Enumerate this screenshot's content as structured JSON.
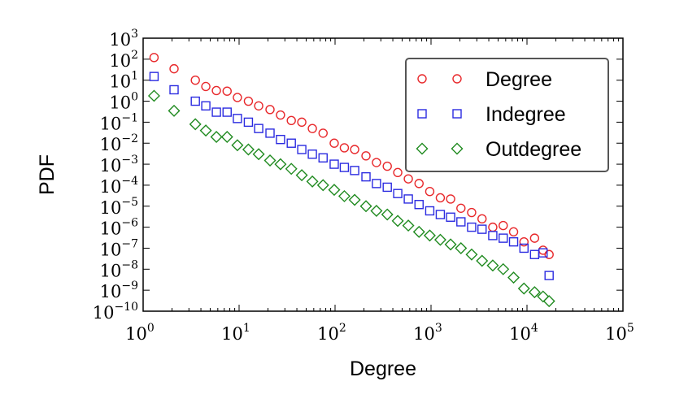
{
  "chart_data": {
    "type": "scatter",
    "title": "",
    "xlabel": "Degree",
    "ylabel": "PDF",
    "x_scale": "log",
    "y_scale": "log",
    "xlim": [
      1,
      100000
    ],
    "ylim": [
      1e-10,
      1000
    ],
    "x_ticks": [
      {
        "base": "10",
        "exp": "0"
      },
      {
        "base": "10",
        "exp": "1"
      },
      {
        "base": "10",
        "exp": "2"
      },
      {
        "base": "10",
        "exp": "3"
      },
      {
        "base": "10",
        "exp": "4"
      },
      {
        "base": "10",
        "exp": "5"
      }
    ],
    "y_ticks": [
      {
        "base": "10",
        "exp": "3"
      },
      {
        "base": "10",
        "exp": "2"
      },
      {
        "base": "10",
        "exp": "1"
      },
      {
        "base": "10",
        "exp": "0"
      },
      {
        "base": "10",
        "exp": "−1"
      },
      {
        "base": "10",
        "exp": "−2"
      },
      {
        "base": "10",
        "exp": "−3"
      },
      {
        "base": "10",
        "exp": "−4"
      },
      {
        "base": "10",
        "exp": "−5"
      },
      {
        "base": "10",
        "exp": "−6"
      },
      {
        "base": "10",
        "exp": "−7"
      },
      {
        "base": "10",
        "exp": "−8"
      },
      {
        "base": "10",
        "exp": "−9"
      },
      {
        "base": "10",
        "exp": "−10"
      }
    ],
    "legend_position": "top-right",
    "series": [
      {
        "name": "Degree",
        "marker": "circle",
        "color": "#e8282b",
        "points": [
          [
            1.3,
            120
          ],
          [
            2.1,
            35
          ],
          [
            3.5,
            10
          ],
          [
            4.5,
            5
          ],
          [
            5.8,
            3.2
          ],
          [
            7.5,
            3
          ],
          [
            9.6,
            1.5
          ],
          [
            12.5,
            1.0
          ],
          [
            16,
            0.6
          ],
          [
            21,
            0.4
          ],
          [
            27,
            0.22
          ],
          [
            35,
            0.12
          ],
          [
            45,
            0.1
          ],
          [
            58,
            0.05
          ],
          [
            75,
            0.03
          ],
          [
            98,
            0.01
          ],
          [
            125,
            0.006
          ],
          [
            160,
            0.005
          ],
          [
            210,
            0.0025
          ],
          [
            270,
            0.0012
          ],
          [
            350,
            0.0008
          ],
          [
            450,
            0.0004
          ],
          [
            580,
            0.0002
          ],
          [
            750,
            0.00012
          ],
          [
            970,
            5e-05
          ],
          [
            1250,
            2.5e-05
          ],
          [
            1600,
            2.2e-05
          ],
          [
            2050,
            8e-06
          ],
          [
            2650,
            5e-06
          ],
          [
            3400,
            2.5e-06
          ],
          [
            4400,
            1e-06
          ],
          [
            5650,
            1.2e-06
          ],
          [
            7250,
            6e-07
          ],
          [
            9300,
            2e-07
          ],
          [
            12000,
            3e-07
          ],
          [
            14700,
            8e-08
          ],
          [
            17000,
            5e-08
          ]
        ]
      },
      {
        "name": "Indegree",
        "marker": "square",
        "color": "#2b2be0",
        "points": [
          [
            1.3,
            15
          ],
          [
            2.1,
            3.5
          ],
          [
            3.5,
            1.0
          ],
          [
            4.5,
            0.6
          ],
          [
            5.8,
            0.3
          ],
          [
            7.5,
            0.3
          ],
          [
            9.6,
            0.15
          ],
          [
            12.5,
            0.1
          ],
          [
            16,
            0.05
          ],
          [
            21,
            0.03
          ],
          [
            27,
            0.015
          ],
          [
            35,
            0.01
          ],
          [
            45,
            0.005
          ],
          [
            58,
            0.003
          ],
          [
            75,
            0.002
          ],
          [
            98,
            0.001
          ],
          [
            125,
            0.0007
          ],
          [
            160,
            0.0005
          ],
          [
            210,
            0.00025
          ],
          [
            270,
            0.00012
          ],
          [
            350,
            8e-05
          ],
          [
            450,
            4e-05
          ],
          [
            580,
            2.2e-05
          ],
          [
            750,
            1.2e-05
          ],
          [
            970,
            6e-06
          ],
          [
            1250,
            4e-06
          ],
          [
            1600,
            3e-06
          ],
          [
            2050,
            1.8e-06
          ],
          [
            2650,
            1e-06
          ],
          [
            3400,
            8e-07
          ],
          [
            4400,
            4e-07
          ],
          [
            5650,
            3e-07
          ],
          [
            7250,
            2e-07
          ],
          [
            9300,
            1e-07
          ],
          [
            12000,
            5e-08
          ],
          [
            14700,
            6e-08
          ],
          [
            17000,
            5e-09
          ]
        ]
      },
      {
        "name": "Outdegree",
        "marker": "diamond",
        "color": "#1f8a1f",
        "points": [
          [
            1.3,
            1.8
          ],
          [
            2.1,
            0.35
          ],
          [
            3.5,
            0.08
          ],
          [
            4.5,
            0.04
          ],
          [
            5.8,
            0.02
          ],
          [
            7.5,
            0.02
          ],
          [
            9.6,
            0.008
          ],
          [
            12.5,
            0.005
          ],
          [
            16,
            0.003
          ],
          [
            21,
            0.0015
          ],
          [
            27,
            0.001
          ],
          [
            35,
            0.0006
          ],
          [
            45,
            0.0003
          ],
          [
            58,
            0.00015
          ],
          [
            75,
            0.0001
          ],
          [
            98,
            6e-05
          ],
          [
            125,
            3e-05
          ],
          [
            160,
            2e-05
          ],
          [
            210,
            1e-05
          ],
          [
            270,
            6e-06
          ],
          [
            350,
            4e-06
          ],
          [
            450,
            2e-06
          ],
          [
            580,
            1.2e-06
          ],
          [
            750,
            6e-07
          ],
          [
            970,
            4e-07
          ],
          [
            1250,
            2.5e-07
          ],
          [
            1600,
            1.5e-07
          ],
          [
            2050,
            1e-07
          ],
          [
            2650,
            5e-08
          ],
          [
            3400,
            2.5e-08
          ],
          [
            4400,
            1.5e-08
          ],
          [
            5650,
            1e-08
          ],
          [
            7250,
            4e-09
          ],
          [
            9300,
            1.2e-09
          ],
          [
            12000,
            8e-10
          ],
          [
            14700,
            5e-10
          ],
          [
            17000,
            3e-10
          ]
        ]
      }
    ]
  }
}
